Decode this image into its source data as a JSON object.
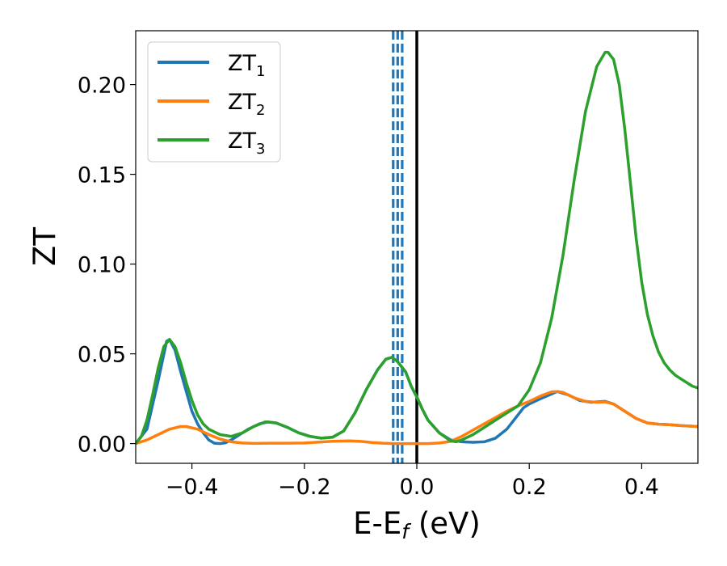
{
  "chart_data": {
    "type": "line",
    "title": "",
    "xlabel": {
      "main": "E-E",
      "sub": "f",
      "suffix": " (eV)"
    },
    "ylabel": "ZT",
    "xlim": [
      -0.5,
      0.5
    ],
    "ylim": [
      -0.011,
      0.23
    ],
    "x_ticks": [
      -0.4,
      -0.2,
      0.0,
      0.2,
      0.4
    ],
    "x_tick_labels": [
      "−0.4",
      "−0.2",
      "0.0",
      "0.2",
      "0.4"
    ],
    "y_ticks": [
      0.0,
      0.05,
      0.1,
      0.15,
      0.2
    ],
    "y_tick_labels": [
      "0.00",
      "0.05",
      "0.10",
      "0.15",
      "0.20"
    ],
    "grid": false,
    "legend_position": "top-left",
    "reference_lines": [
      {
        "x": 0.0,
        "style": "solid",
        "color": "#000000"
      },
      {
        "x": -0.042,
        "style": "dashed",
        "color": "#1f77b4"
      },
      {
        "x": -0.034,
        "style": "dashed",
        "color": "#1f77b4"
      },
      {
        "x": -0.026,
        "style": "dashed",
        "color": "#1f77b4"
      }
    ],
    "series": [
      {
        "name": "ZT",
        "sub": "1",
        "color": "#1f77b4",
        "points": [
          [
            -0.5,
            0.0
          ],
          [
            -0.48,
            0.008
          ],
          [
            -0.46,
            0.035
          ],
          [
            -0.445,
            0.057
          ],
          [
            -0.44,
            0.058
          ],
          [
            -0.43,
            0.052
          ],
          [
            -0.42,
            0.04
          ],
          [
            -0.41,
            0.029
          ],
          [
            -0.4,
            0.018
          ],
          [
            -0.39,
            0.011
          ],
          [
            -0.38,
            0.006
          ],
          [
            -0.37,
            0.002
          ],
          [
            -0.36,
            0.0002
          ],
          [
            -0.35,
            0.0
          ],
          [
            -0.34,
            0.0005
          ],
          [
            -0.33,
            0.002
          ],
          [
            -0.32,
            0.004
          ],
          [
            -0.3,
            0.008
          ],
          [
            -0.28,
            0.011
          ],
          [
            -0.265,
            0.012
          ],
          [
            -0.25,
            0.0115
          ],
          [
            -0.23,
            0.009
          ],
          [
            -0.21,
            0.006
          ],
          [
            -0.19,
            0.004
          ],
          [
            -0.17,
            0.003
          ],
          [
            -0.15,
            0.0035
          ],
          [
            -0.13,
            0.007
          ],
          [
            -0.11,
            0.017
          ],
          [
            -0.09,
            0.03
          ],
          [
            -0.07,
            0.041
          ],
          [
            -0.055,
            0.047
          ],
          [
            -0.045,
            0.048
          ],
          [
            -0.035,
            0.046
          ],
          [
            -0.02,
            0.04
          ],
          [
            -0.01,
            0.032
          ],
          [
            0.0,
            0.026
          ],
          [
            0.01,
            0.019
          ],
          [
            0.02,
            0.013
          ],
          [
            0.04,
            0.006
          ],
          [
            0.06,
            0.002
          ],
          [
            0.08,
            0.001
          ],
          [
            0.1,
            0.0007
          ],
          [
            0.12,
            0.001
          ],
          [
            0.14,
            0.003
          ],
          [
            0.16,
            0.008
          ],
          [
            0.18,
            0.016
          ],
          [
            0.19,
            0.02
          ],
          [
            0.2,
            0.022
          ],
          [
            0.22,
            0.025
          ],
          [
            0.25,
            0.029
          ],
          [
            0.27,
            0.027
          ],
          [
            0.29,
            0.024
          ],
          [
            0.31,
            0.023
          ],
          [
            0.335,
            0.0235
          ],
          [
            0.35,
            0.022
          ],
          [
            0.37,
            0.018
          ],
          [
            0.39,
            0.014
          ],
          [
            0.41,
            0.0115
          ],
          [
            0.43,
            0.0108
          ],
          [
            0.45,
            0.0105
          ],
          [
            0.47,
            0.01
          ],
          [
            0.5,
            0.0095
          ]
        ]
      },
      {
        "name": "ZT",
        "sub": "2",
        "color": "#ff7f0e",
        "points": [
          [
            -0.5,
            0.0
          ],
          [
            -0.48,
            0.002
          ],
          [
            -0.46,
            0.005
          ],
          [
            -0.44,
            0.008
          ],
          [
            -0.42,
            0.0095
          ],
          [
            -0.41,
            0.0095
          ],
          [
            -0.39,
            0.008
          ],
          [
            -0.37,
            0.005
          ],
          [
            -0.35,
            0.0025
          ],
          [
            -0.33,
            0.001
          ],
          [
            -0.31,
            0.0003
          ],
          [
            -0.29,
            0.0001
          ],
          [
            -0.26,
            0.0002
          ],
          [
            -0.23,
            0.0002
          ],
          [
            -0.2,
            0.0003
          ],
          [
            -0.18,
            0.0007
          ],
          [
            -0.15,
            0.0013
          ],
          [
            -0.12,
            0.0015
          ],
          [
            -0.1,
            0.0012
          ],
          [
            -0.08,
            0.0006
          ],
          [
            -0.06,
            0.0002
          ],
          [
            -0.04,
            0.0
          ],
          [
            -0.02,
            0.0
          ],
          [
            0.0,
            0.0
          ],
          [
            0.02,
            0.0
          ],
          [
            0.04,
            0.0003
          ],
          [
            0.06,
            0.0012
          ],
          [
            0.08,
            0.004
          ],
          [
            0.1,
            0.0075
          ],
          [
            0.12,
            0.011
          ],
          [
            0.14,
            0.0145
          ],
          [
            0.16,
            0.018
          ],
          [
            0.18,
            0.021
          ],
          [
            0.2,
            0.0235
          ],
          [
            0.22,
            0.0265
          ],
          [
            0.24,
            0.0288
          ],
          [
            0.25,
            0.029
          ],
          [
            0.26,
            0.0285
          ],
          [
            0.28,
            0.0255
          ],
          [
            0.3,
            0.0235
          ],
          [
            0.32,
            0.023
          ],
          [
            0.335,
            0.0232
          ],
          [
            0.35,
            0.022
          ],
          [
            0.37,
            0.018
          ],
          [
            0.39,
            0.014
          ],
          [
            0.41,
            0.0115
          ],
          [
            0.43,
            0.0108
          ],
          [
            0.45,
            0.0105
          ],
          [
            0.47,
            0.01
          ],
          [
            0.5,
            0.0095
          ]
        ]
      },
      {
        "name": "ZT",
        "sub": "3",
        "color": "#2ca02c",
        "points": [
          [
            -0.5,
            0.0
          ],
          [
            -0.49,
            0.004
          ],
          [
            -0.48,
            0.013
          ],
          [
            -0.47,
            0.027
          ],
          [
            -0.46,
            0.042
          ],
          [
            -0.45,
            0.054
          ],
          [
            -0.44,
            0.058
          ],
          [
            -0.43,
            0.054
          ],
          [
            -0.42,
            0.045
          ],
          [
            -0.41,
            0.034
          ],
          [
            -0.4,
            0.024
          ],
          [
            -0.39,
            0.016
          ],
          [
            -0.38,
            0.011
          ],
          [
            -0.37,
            0.008
          ],
          [
            -0.35,
            0.005
          ],
          [
            -0.33,
            0.004
          ],
          [
            -0.31,
            0.006
          ],
          [
            -0.29,
            0.0095
          ],
          [
            -0.27,
            0.012
          ],
          [
            -0.265,
            0.012
          ],
          [
            -0.25,
            0.0115
          ],
          [
            -0.23,
            0.009
          ],
          [
            -0.21,
            0.006
          ],
          [
            -0.19,
            0.004
          ],
          [
            -0.17,
            0.003
          ],
          [
            -0.15,
            0.0035
          ],
          [
            -0.13,
            0.007
          ],
          [
            -0.11,
            0.017
          ],
          [
            -0.09,
            0.03
          ],
          [
            -0.07,
            0.041
          ],
          [
            -0.055,
            0.047
          ],
          [
            -0.045,
            0.048
          ],
          [
            -0.035,
            0.046
          ],
          [
            -0.02,
            0.04
          ],
          [
            -0.01,
            0.032
          ],
          [
            0.0,
            0.026
          ],
          [
            0.01,
            0.019
          ],
          [
            0.02,
            0.013
          ],
          [
            0.04,
            0.006
          ],
          [
            0.06,
            0.0015
          ],
          [
            0.07,
            0.001
          ],
          [
            0.08,
            0.002
          ],
          [
            0.1,
            0.005
          ],
          [
            0.12,
            0.009
          ],
          [
            0.14,
            0.013
          ],
          [
            0.16,
            0.017
          ],
          [
            0.18,
            0.021
          ],
          [
            0.2,
            0.03
          ],
          [
            0.22,
            0.045
          ],
          [
            0.24,
            0.07
          ],
          [
            0.26,
            0.105
          ],
          [
            0.28,
            0.147
          ],
          [
            0.3,
            0.185
          ],
          [
            0.32,
            0.21
          ],
          [
            0.335,
            0.218
          ],
          [
            0.34,
            0.218
          ],
          [
            0.35,
            0.214
          ],
          [
            0.36,
            0.2
          ],
          [
            0.37,
            0.175
          ],
          [
            0.38,
            0.145
          ],
          [
            0.39,
            0.115
          ],
          [
            0.4,
            0.09
          ],
          [
            0.41,
            0.072
          ],
          [
            0.42,
            0.06
          ],
          [
            0.43,
            0.051
          ],
          [
            0.44,
            0.045
          ],
          [
            0.45,
            0.041
          ],
          [
            0.46,
            0.038
          ],
          [
            0.47,
            0.036
          ],
          [
            0.48,
            0.034
          ],
          [
            0.49,
            0.032
          ],
          [
            0.5,
            0.031
          ]
        ]
      }
    ]
  }
}
